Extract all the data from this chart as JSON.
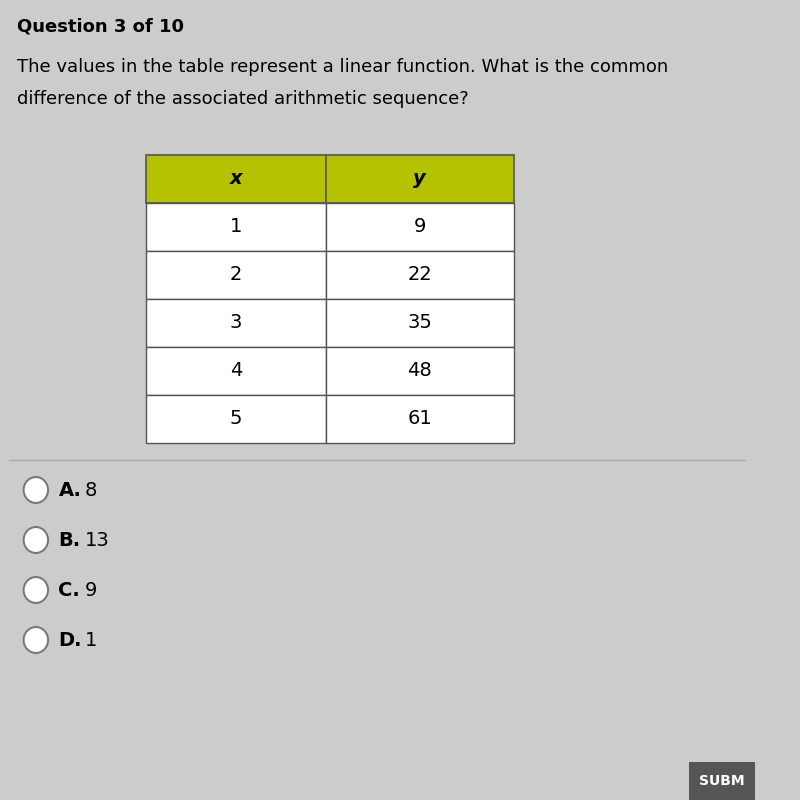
{
  "question_header": "Question 3 of 10",
  "question_text_line1": "The values in the table represent a linear function. What is the common",
  "question_text_line2": "difference of the associated arithmetic sequence?",
  "table_header": [
    "x",
    "y"
  ],
  "table_data": [
    [
      "1",
      "9"
    ],
    [
      "2",
      "22"
    ],
    [
      "3",
      "35"
    ],
    [
      "4",
      "48"
    ],
    [
      "5",
      "61"
    ]
  ],
  "header_bg_color": "#b5c200",
  "header_text_color": "#000000",
  "table_bg_color": "#ffffff",
  "table_border_color": "#555555",
  "choices": [
    "A.",
    "B.",
    "C.",
    "D."
  ],
  "choice_values": [
    "8",
    "13",
    "9",
    "1"
  ],
  "bg_color": "#cccccc",
  "submit_label": "SUBM",
  "submit_bg_color": "#555555",
  "submit_text_color": "#ffffff"
}
